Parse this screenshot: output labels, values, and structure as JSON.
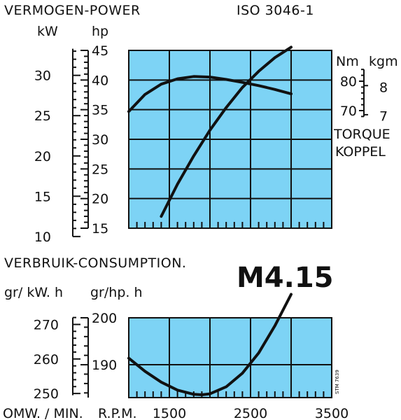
{
  "header": {
    "title": "VERMOGEN-POWER",
    "standard": "ISO 3046-1",
    "power_unit_kw": "kW",
    "power_unit_hp": "hp",
    "torque_unit_nm": "Nm",
    "torque_unit_kgm": "kgm",
    "torque_label_1": "TORQUE",
    "torque_label_2": "KOPPEL",
    "consumption_title": "VERBRUIK-CONSUMPTION.",
    "consumption_unit_kwh": "gr/ kW. h",
    "consumption_unit_hph": "gr/hp. h",
    "x_label_1": "OMW. / MIN.",
    "x_label_2": "R.P.M.",
    "model": "M4.15",
    "stamp": "STM 7639"
  },
  "colors": {
    "panel_fill": "#7dd3f5",
    "grid_and_curve": "#111111",
    "model_text": "#e8202a"
  },
  "chart_data": [
    {
      "type": "line",
      "title": "VERMOGEN-POWER",
      "x_unit": "R.P.M.",
      "xlim": [
        1000,
        3500
      ],
      "ylabel_left": "kW",
      "ylabel_right": "hp",
      "ylim_hp": [
        15,
        45
      ],
      "yticks_hp": [
        "15",
        "20",
        "25",
        "30",
        "35",
        "40",
        "45"
      ],
      "yticks_kw": [
        "10",
        "15",
        "20",
        "25",
        "30"
      ],
      "grid": true,
      "series": [
        {
          "x": [
            1400,
            1600,
            1800,
            2000,
            2200,
            2400,
            2600,
            2800,
            3000
          ],
          "y": [
            12.5,
            16.5,
            20.0,
            23.2,
            26.0,
            28.5,
            30.5,
            32.2,
            33.5
          ]
        }
      ]
    },
    {
      "type": "line",
      "ylabel_left": "Nm",
      "ylabel_right": "kgm",
      "yticks_nm": [
        "70",
        "80"
      ],
      "yticks_kgm": [
        "7",
        "8"
      ],
      "series": [
        {
          "x": [
            1000,
            1200,
            1400,
            1600,
            1800,
            2000,
            2200,
            2400,
            2600,
            2800,
            3000
          ],
          "y": [
            69.7,
            75.5,
            79.0,
            80.8,
            81.6,
            81.4,
            80.6,
            79.6,
            78.5,
            77.2,
            75.7
          ]
        }
      ]
    },
    {
      "type": "line",
      "title": "VERBRUIK-CONSUMPTION.",
      "ylabel_left": "gr/ kW. h",
      "ylabel_right": "gr/hp. h",
      "ylim_hph": [
        183,
        200
      ],
      "yticks_hph": [
        "190",
        "200"
      ],
      "yticks_kwh": [
        "250",
        "260",
        "270"
      ],
      "series": [
        {
          "x": [
            1000,
            1200,
            1400,
            1600,
            1800,
            1900,
            2000,
            2200,
            2400,
            2600,
            2800,
            3000
          ],
          "y": [
            191.4,
            188.6,
            186.3,
            184.6,
            183.7,
            183.6,
            183.8,
            185.3,
            188.2,
            192.5,
            198.3,
            205.0
          ]
        }
      ]
    },
    {
      "type": "line",
      "xlabel": "OMW. / MIN.",
      "x_unit": "R.P.M.",
      "xticks": [
        "1500",
        "2500",
        "3500"
      ]
    }
  ]
}
